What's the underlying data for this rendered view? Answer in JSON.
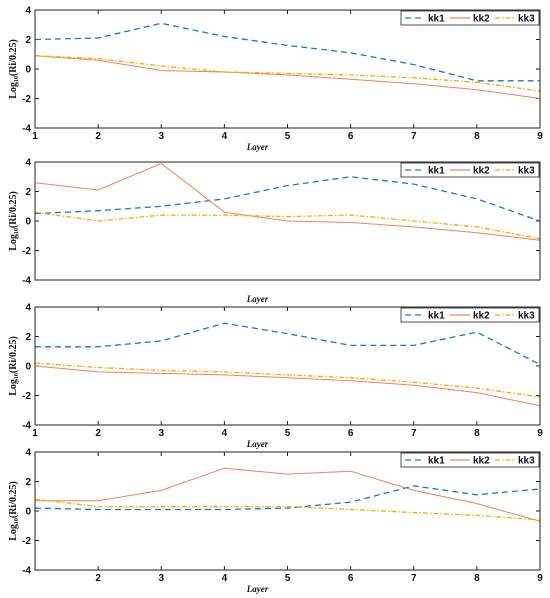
{
  "colors": {
    "kk1": "#1f77c4",
    "kk2": "#f08060",
    "kk3": "#f0b000"
  },
  "chart_data": [
    {
      "type": "line",
      "x": [
        1,
        2,
        3,
        4,
        5,
        6,
        7,
        8,
        9
      ],
      "x_ticks": [
        "1",
        "2",
        "3",
        "4",
        "5",
        "6",
        "7",
        "8",
        "9"
      ],
      "xlabel": "Layer",
      "ylabel": "Log₁₀(Ri/0.25)",
      "ylim": [
        -4,
        4
      ],
      "y_ticks": [
        "-4",
        "-2",
        "0",
        "2",
        "4"
      ],
      "legend_position": "top-right",
      "series": [
        {
          "name": "kk1",
          "values": [
            2.0,
            2.1,
            3.1,
            2.2,
            1.6,
            1.1,
            0.3,
            -0.8,
            -0.8
          ]
        },
        {
          "name": "kk2",
          "values": [
            0.9,
            0.6,
            -0.1,
            -0.2,
            -0.4,
            -0.7,
            -1.0,
            -1.4,
            -2.0
          ]
        },
        {
          "name": "kk3",
          "values": [
            0.9,
            0.7,
            0.2,
            -0.2,
            -0.3,
            -0.4,
            -0.6,
            -0.9,
            -1.5
          ]
        }
      ]
    },
    {
      "type": "line",
      "x": [
        1,
        2,
        3,
        4,
        5,
        6,
        7,
        8,
        9
      ],
      "x_ticks": [],
      "xlabel": "Layer",
      "ylabel": "Log₁₀(Ri/0.25)",
      "ylim": [
        -4,
        4
      ],
      "y_ticks": [
        "-4",
        "-2",
        "0",
        "2",
        "4"
      ],
      "legend_position": "top-right",
      "series": [
        {
          "name": "kk1",
          "values": [
            0.5,
            0.7,
            1.0,
            1.5,
            2.4,
            3.0,
            2.5,
            1.5,
            0.0
          ]
        },
        {
          "name": "kk2",
          "values": [
            2.6,
            2.1,
            3.9,
            0.6,
            0.0,
            -0.1,
            -0.4,
            -0.8,
            -1.3
          ]
        },
        {
          "name": "kk3",
          "values": [
            0.6,
            0.0,
            0.4,
            0.4,
            0.3,
            0.4,
            0.0,
            -0.4,
            -1.2
          ]
        }
      ]
    },
    {
      "type": "line",
      "x": [
        1,
        2,
        3,
        4,
        5,
        6,
        7,
        8,
        9
      ],
      "x_ticks": [
        "1",
        "2",
        "3",
        "4",
        "5",
        "6",
        "7",
        "8",
        "9"
      ],
      "xlabel": "Layer",
      "ylabel": "Log₁₀(Ri/0.25)",
      "ylim": [
        -4,
        4
      ],
      "y_ticks": [
        "-4",
        "-2",
        "0",
        "2",
        "4"
      ],
      "legend_position": "top-right",
      "series": [
        {
          "name": "kk1",
          "values": [
            1.3,
            1.3,
            1.7,
            2.9,
            2.2,
            1.4,
            1.4,
            2.3,
            0.1
          ]
        },
        {
          "name": "kk2",
          "values": [
            0.0,
            -0.4,
            -0.5,
            -0.6,
            -0.8,
            -1.0,
            -1.3,
            -1.8,
            -2.7
          ]
        },
        {
          "name": "kk3",
          "values": [
            0.2,
            -0.1,
            -0.3,
            -0.4,
            -0.6,
            -0.8,
            -1.1,
            -1.5,
            -2.1
          ]
        }
      ]
    },
    {
      "type": "line",
      "x": [
        1,
        2,
        3,
        4,
        5,
        6,
        7,
        8,
        9
      ],
      "x_ticks": [
        "2",
        "3",
        "4",
        "5",
        "6",
        "7",
        "8",
        "9"
      ],
      "x_tick_values": [
        2,
        3,
        4,
        5,
        6,
        7,
        8,
        9
      ],
      "xlabel": "Layer",
      "ylabel": "Log₁₀(Ri/0.25)",
      "ylim": [
        -4,
        4
      ],
      "y_ticks": [
        "-4",
        "-2",
        "0",
        "2",
        "4"
      ],
      "legend_position": "top-right",
      "series": [
        {
          "name": "kk1",
          "values": [
            0.2,
            0.1,
            0.1,
            0.1,
            0.2,
            0.6,
            1.7,
            1.1,
            1.5
          ]
        },
        {
          "name": "kk2",
          "values": [
            0.7,
            0.7,
            1.4,
            2.9,
            2.5,
            2.7,
            1.4,
            0.5,
            -0.7
          ]
        },
        {
          "name": "kk3",
          "values": [
            0.8,
            0.3,
            0.3,
            0.3,
            0.3,
            0.1,
            -0.1,
            -0.3,
            -0.6
          ]
        }
      ]
    }
  ]
}
